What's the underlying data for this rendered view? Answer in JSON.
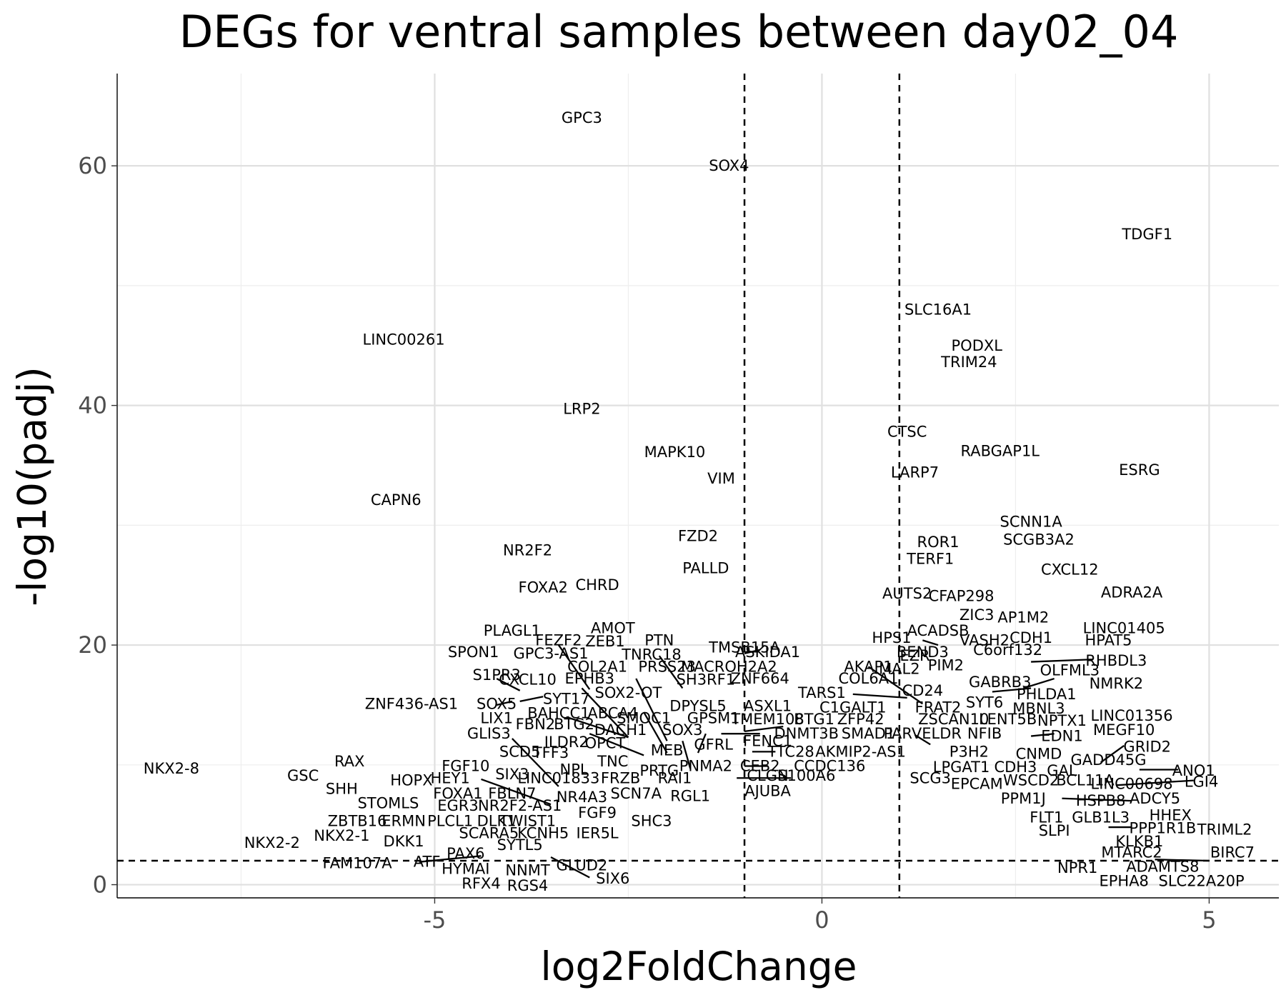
{
  "chart_data": {
    "type": "scatter",
    "title": "DEGs for ventral samples between day02_04",
    "xlabel": "log2FoldChange",
    "ylabel": "-log10(padj)",
    "xlim": [
      -9.1,
      5.9
    ],
    "ylim": [
      -1.1,
      67.7
    ],
    "x_ticks": [
      {
        "value": -5,
        "label": "-5"
      },
      {
        "value": 0,
        "label": "0"
      },
      {
        "value": 5,
        "label": "5"
      }
    ],
    "y_ticks": [
      {
        "value": 0,
        "label": "0"
      },
      {
        "value": 20,
        "label": "20"
      },
      {
        "value": 40,
        "label": "40"
      },
      {
        "value": 60,
        "label": "60"
      }
    ],
    "grid": true,
    "thresholds": {
      "log2fc": [
        -1,
        1
      ],
      "padj_neglog10": 2
    },
    "points": [
      {
        "label": "GPC3",
        "x": -3.1,
        "y": 64.0
      },
      {
        "label": "SOX4",
        "x": -1.2,
        "y": 60.0
      },
      {
        "label": "TDGF1",
        "x": 4.2,
        "y": 54.3
      },
      {
        "label": "SLC16A1",
        "x": 1.5,
        "y": 48.0
      },
      {
        "label": "LINC00261",
        "x": -5.4,
        "y": 45.5
      },
      {
        "label": "PODXL",
        "x": 2.0,
        "y": 45.0
      },
      {
        "label": "TRIM24",
        "x": 1.9,
        "y": 43.6
      },
      {
        "label": "LRP2",
        "x": -3.1,
        "y": 39.7
      },
      {
        "label": "CTSC",
        "x": 1.1,
        "y": 37.8
      },
      {
        "label": "MAPK10",
        "x": -1.9,
        "y": 36.1
      },
      {
        "label": "RABGAP1L",
        "x": 2.3,
        "y": 36.2
      },
      {
        "label": "ESRG",
        "x": 4.1,
        "y": 34.6
      },
      {
        "label": "LARP7",
        "x": 1.2,
        "y": 34.4
      },
      {
        "label": "VIM",
        "x": -1.3,
        "y": 33.9
      },
      {
        "label": "CAPN6",
        "x": -5.5,
        "y": 32.1
      },
      {
        "label": "SCNN1A",
        "x": 2.7,
        "y": 30.3
      },
      {
        "label": "FZD2",
        "x": -1.6,
        "y": 29.1
      },
      {
        "label": "SCGB3A2",
        "x": 2.8,
        "y": 28.8
      },
      {
        "label": "ROR1",
        "x": 1.5,
        "y": 28.6
      },
      {
        "label": "NR2F2",
        "x": -3.8,
        "y": 27.9
      },
      {
        "label": "TERF1",
        "x": 1.4,
        "y": 27.2
      },
      {
        "label": "CXCL12",
        "x": 3.2,
        "y": 26.3
      },
      {
        "label": "PALLD",
        "x": -1.5,
        "y": 26.4
      },
      {
        "label": "FOXA2",
        "x": -3.6,
        "y": 24.8
      },
      {
        "label": "CHRD",
        "x": -2.9,
        "y": 25.0
      },
      {
        "label": "ADRA2A",
        "x": 4.0,
        "y": 24.4
      },
      {
        "label": "AUTS2",
        "x": 1.1,
        "y": 24.3
      },
      {
        "label": "CFAP298",
        "x": 1.8,
        "y": 24.1
      },
      {
        "label": "ZIC3",
        "x": 2.0,
        "y": 22.5
      },
      {
        "label": "AP1M2",
        "x": 2.6,
        "y": 22.3
      },
      {
        "label": "AMOT",
        "x": -2.7,
        "y": 21.4
      },
      {
        "label": "PLAGL1",
        "x": -4.0,
        "y": 21.2
      },
      {
        "label": "LINC01405",
        "x": 3.9,
        "y": 21.4
      },
      {
        "label": "ACADSB",
        "x": 1.5,
        "y": 21.2
      },
      {
        "label": "HPS1",
        "x": 0.9,
        "y": 20.6
      },
      {
        "label": "VASH2",
        "x": 2.1,
        "y": 20.4
      },
      {
        "label": "CDH1",
        "x": 2.7,
        "y": 20.6
      },
      {
        "label": "HPAT5",
        "x": 3.7,
        "y": 20.4
      },
      {
        "label": "FEZF2",
        "x": -3.4,
        "y": 20.4
      },
      {
        "label": "ZEB1",
        "x": -2.8,
        "y": 20.3
      },
      {
        "label": "PTN",
        "x": -2.1,
        "y": 20.4
      },
      {
        "label": "ASKIDA1",
        "x": -0.7,
        "y": 19.4
      },
      {
        "label": "TMSB15A",
        "x": -1.0,
        "y": 19.8
      },
      {
        "label": "C6orf132",
        "x": 2.4,
        "y": 19.6
      },
      {
        "label": "SPON1",
        "x": -4.5,
        "y": 19.4
      },
      {
        "label": "GPC3-AS1",
        "x": -3.5,
        "y": 19.3
      },
      {
        "label": "TNRC18",
        "x": -2.2,
        "y": 19.2
      },
      {
        "label": "EZR",
        "x": 1.2,
        "y": 19.1
      },
      {
        "label": "BEND3",
        "x": 1.3,
        "y": 19.4
      },
      {
        "label": "RHBDL3",
        "x": 3.8,
        "y": 18.7
      },
      {
        "label": "PIM2",
        "x": 1.6,
        "y": 18.3
      },
      {
        "label": "COL2A1",
        "x": -2.9,
        "y": 18.2
      },
      {
        "label": "PRSS23",
        "x": -2.0,
        "y": 18.2
      },
      {
        "label": "MACROH2A2",
        "x": -1.2,
        "y": 18.2
      },
      {
        "label": "AKAP1",
        "x": 0.6,
        "y": 18.2
      },
      {
        "label": "MAL2",
        "x": 1.0,
        "y": 18.0
      },
      {
        "label": "OLFML3",
        "x": 3.2,
        "y": 17.9
      },
      {
        "label": "S1PR3",
        "x": -4.2,
        "y": 17.5
      },
      {
        "label": "CXCL10",
        "x": -3.8,
        "y": 17.1
      },
      {
        "label": "EPHB3",
        "x": -3.0,
        "y": 17.2
      },
      {
        "label": "SH3RF1",
        "x": -1.5,
        "y": 17.1
      },
      {
        "label": "ZNF664",
        "x": -0.8,
        "y": 17.2
      },
      {
        "label": "COL6A1",
        "x": 0.6,
        "y": 17.2
      },
      {
        "label": "GABRB3",
        "x": 2.3,
        "y": 16.9
      },
      {
        "label": "NMRK2",
        "x": 3.8,
        "y": 16.8
      },
      {
        "label": "CD24",
        "x": 1.3,
        "y": 16.2
      },
      {
        "label": "TARS1",
        "x": 0.0,
        "y": 16.0
      },
      {
        "label": "SOX2-OT",
        "x": -2.5,
        "y": 16.0
      },
      {
        "label": "PHLDA1",
        "x": 2.9,
        "y": 15.9
      },
      {
        "label": "SYT17",
        "x": -3.3,
        "y": 15.5
      },
      {
        "label": "SYT6",
        "x": 2.1,
        "y": 15.2
      },
      {
        "label": "ZNF436-AS1",
        "x": -5.3,
        "y": 15.1
      },
      {
        "label": "SOX5",
        "x": -4.2,
        "y": 15.1
      },
      {
        "label": "DPYSL5",
        "x": -1.6,
        "y": 14.9
      },
      {
        "label": "ASXL1",
        "x": -0.7,
        "y": 14.9
      },
      {
        "label": "C1GALT1",
        "x": 0.4,
        "y": 14.8
      },
      {
        "label": "FRAT2",
        "x": 1.5,
        "y": 14.8
      },
      {
        "label": "MBNL3",
        "x": 2.8,
        "y": 14.7
      },
      {
        "label": "BAHCC1",
        "x": -3.4,
        "y": 14.3
      },
      {
        "label": "ABCA4",
        "x": -2.7,
        "y": 14.3
      },
      {
        "label": "LIX1",
        "x": -4.2,
        "y": 13.9
      },
      {
        "label": "SMOC1",
        "x": -2.3,
        "y": 13.9
      },
      {
        "label": "GPSM1",
        "x": -1.4,
        "y": 13.9
      },
      {
        "label": "TMEM108",
        "x": -0.7,
        "y": 13.8
      },
      {
        "label": "BTG1",
        "x": -0.1,
        "y": 13.8
      },
      {
        "label": "ZFP42",
        "x": 0.5,
        "y": 13.8
      },
      {
        "label": "ZSCAN10",
        "x": 1.7,
        "y": 13.8
      },
      {
        "label": "LENT5B",
        "x": 2.4,
        "y": 13.8
      },
      {
        "label": "NPTX1",
        "x": 3.1,
        "y": 13.7
      },
      {
        "label": "LINC01356",
        "x": 4.0,
        "y": 14.1
      },
      {
        "label": "FBN2",
        "x": -3.7,
        "y": 13.4
      },
      {
        "label": "BTG2",
        "x": -3.2,
        "y": 13.4
      },
      {
        "label": "DACH1",
        "x": -2.6,
        "y": 12.9
      },
      {
        "label": "SOX3",
        "x": -1.8,
        "y": 12.9
      },
      {
        "label": "GLIS3",
        "x": -4.3,
        "y": 12.6
      },
      {
        "label": "DNMT3B",
        "x": -0.2,
        "y": 12.6
      },
      {
        "label": "SMAD1",
        "x": 0.6,
        "y": 12.6
      },
      {
        "label": "PARVELDR",
        "x": 1.3,
        "y": 12.6
      },
      {
        "label": "NFIB",
        "x": 2.1,
        "y": 12.6
      },
      {
        "label": "EDN1",
        "x": 3.1,
        "y": 12.4
      },
      {
        "label": "MEGF10",
        "x": 3.9,
        "y": 12.9
      },
      {
        "label": "ILDR2",
        "x": -3.3,
        "y": 11.9
      },
      {
        "label": "OPCT",
        "x": -2.8,
        "y": 11.8
      },
      {
        "label": "GFRL",
        "x": -1.4,
        "y": 11.7
      },
      {
        "label": "FENC1",
        "x": -0.7,
        "y": 12.0
      },
      {
        "label": "SCD5",
        "x": -3.9,
        "y": 11.1
      },
      {
        "label": "TFF3",
        "x": -3.5,
        "y": 11.0
      },
      {
        "label": "MEB",
        "x": -2.0,
        "y": 11.2
      },
      {
        "label": "TTC28",
        "x": -0.4,
        "y": 11.1
      },
      {
        "label": "AKMIP2-AS1",
        "x": 0.5,
        "y": 11.1
      },
      {
        "label": "P3H2",
        "x": 1.9,
        "y": 11.1
      },
      {
        "label": "CNMD",
        "x": 2.8,
        "y": 10.9
      },
      {
        "label": "GRID2",
        "x": 4.2,
        "y": 11.5
      },
      {
        "label": "TNC",
        "x": -2.7,
        "y": 10.3
      },
      {
        "label": "GADD45G",
        "x": 3.7,
        "y": 10.4
      },
      {
        "label": "NKX2-8",
        "x": -8.4,
        "y": 9.7
      },
      {
        "label": "RAX",
        "x": -6.1,
        "y": 10.3
      },
      {
        "label": "FGF10",
        "x": -4.6,
        "y": 9.9
      },
      {
        "label": "SIX3",
        "x": -4.0,
        "y": 9.2
      },
      {
        "label": "NPL",
        "x": -3.2,
        "y": 9.6
      },
      {
        "label": "PRTG",
        "x": -2.1,
        "y": 9.5
      },
      {
        "label": "PNMA2",
        "x": -1.5,
        "y": 9.9
      },
      {
        "label": "CEB2",
        "x": -0.8,
        "y": 9.9
      },
      {
        "label": "CCDC136",
        "x": 0.1,
        "y": 9.9
      },
      {
        "label": "LPGAT1",
        "x": 1.8,
        "y": 9.8
      },
      {
        "label": "CDH3",
        "x": 2.5,
        "y": 9.8
      },
      {
        "label": "GAL",
        "x": 3.1,
        "y": 9.5
      },
      {
        "label": "ANO1",
        "x": 4.8,
        "y": 9.5
      },
      {
        "label": "GSC",
        "x": -6.7,
        "y": 9.1
      },
      {
        "label": "HEY1",
        "x": -4.8,
        "y": 8.9
      },
      {
        "label": "LINC01833",
        "x": -3.4,
        "y": 8.9
      },
      {
        "label": "FRZB",
        "x": -2.6,
        "y": 8.9
      },
      {
        "label": "RAI1",
        "x": -1.9,
        "y": 8.9
      },
      {
        "label": "CLGN",
        "x": -0.7,
        "y": 9.1
      },
      {
        "label": "S100A6",
        "x": -0.2,
        "y": 9.1
      },
      {
        "label": "SCG3",
        "x": 1.4,
        "y": 8.9
      },
      {
        "label": "EPCAM",
        "x": 2.0,
        "y": 8.4
      },
      {
        "label": "WSCD2",
        "x": 2.7,
        "y": 8.7
      },
      {
        "label": "BCL11A",
        "x": 3.4,
        "y": 8.7
      },
      {
        "label": "LINC00698",
        "x": 4.0,
        "y": 8.4
      },
      {
        "label": "LGI4",
        "x": 4.9,
        "y": 8.6
      },
      {
        "label": "HOPX",
        "x": -5.3,
        "y": 8.7
      },
      {
        "label": "SHH",
        "x": -6.2,
        "y": 8.0
      },
      {
        "label": "FOXA1",
        "x": -4.7,
        "y": 7.6
      },
      {
        "label": "FBLN7",
        "x": -4.0,
        "y": 7.6
      },
      {
        "label": "SCN7A",
        "x": -2.4,
        "y": 7.6
      },
      {
        "label": "RGL1",
        "x": -1.7,
        "y": 7.4
      },
      {
        "label": "AJUBA",
        "x": -0.7,
        "y": 7.8
      },
      {
        "label": "NR4A3",
        "x": -3.1,
        "y": 7.3
      },
      {
        "label": "PPM1J",
        "x": 2.6,
        "y": 7.2
      },
      {
        "label": "HSPB8",
        "x": 3.6,
        "y": 7.0
      },
      {
        "label": "ADCY5",
        "x": 4.3,
        "y": 7.2
      },
      {
        "label": "STOMLS",
        "x": -5.6,
        "y": 6.8
      },
      {
        "label": "EGR3",
        "x": -4.7,
        "y": 6.6
      },
      {
        "label": "NR2F2-AS1",
        "x": -3.9,
        "y": 6.6
      },
      {
        "label": "FGF9",
        "x": -2.9,
        "y": 6.0
      },
      {
        "label": "FLT1",
        "x": 2.9,
        "y": 5.6
      },
      {
        "label": "GLB1L3",
        "x": 3.6,
        "y": 5.6
      },
      {
        "label": "HHEX",
        "x": 4.5,
        "y": 5.8
      },
      {
        "label": "ZBTB16",
        "x": -6.0,
        "y": 5.3
      },
      {
        "label": "ERMN",
        "x": -5.4,
        "y": 5.3
      },
      {
        "label": "PLCL1",
        "x": -4.8,
        "y": 5.3
      },
      {
        "label": "DLK1",
        "x": -4.2,
        "y": 5.3
      },
      {
        "label": "TWIST1",
        "x": -3.8,
        "y": 5.3
      },
      {
        "label": "SHC3",
        "x": -2.2,
        "y": 5.3
      },
      {
        "label": "SLPI",
        "x": 3.0,
        "y": 4.5
      },
      {
        "label": "PPP1R1B",
        "x": 4.4,
        "y": 4.7
      },
      {
        "label": "TRIML2",
        "x": 5.2,
        "y": 4.6
      },
      {
        "label": "NKX2-1",
        "x": -6.2,
        "y": 4.1
      },
      {
        "label": "SCARA5",
        "x": -4.3,
        "y": 4.3
      },
      {
        "label": "KCNH5",
        "x": -3.6,
        "y": 4.3
      },
      {
        "label": "IER5L",
        "x": -2.9,
        "y": 4.3
      },
      {
        "label": "KLKB1",
        "x": 4.1,
        "y": 3.6
      },
      {
        "label": "NKX2-2",
        "x": -7.1,
        "y": 3.5
      },
      {
        "label": "DKK1",
        "x": -5.4,
        "y": 3.6
      },
      {
        "label": "SYTL5",
        "x": -3.9,
        "y": 3.3
      },
      {
        "label": "MTARC2",
        "x": 4.0,
        "y": 2.7
      },
      {
        "label": "BIRC7",
        "x": 5.3,
        "y": 2.7
      },
      {
        "label": "PAX6",
        "x": -4.6,
        "y": 2.6
      },
      {
        "label": "FAM107A",
        "x": -6.0,
        "y": 1.8
      },
      {
        "label": "ATF",
        "x": -5.1,
        "y": 1.9
      },
      {
        "label": "GLUD2",
        "x": -3.1,
        "y": 1.6
      },
      {
        "label": "ADAMTS8",
        "x": 4.4,
        "y": 1.5
      },
      {
        "label": "NPR1",
        "x": 3.3,
        "y": 1.4
      },
      {
        "label": "HYMAI",
        "x": -4.6,
        "y": 1.3
      },
      {
        "label": "NNMT",
        "x": -3.8,
        "y": 1.2
      },
      {
        "label": "SIX6",
        "x": -2.7,
        "y": 0.5
      },
      {
        "label": "EPHA8",
        "x": 3.9,
        "y": 0.3
      },
      {
        "label": "SLC22A20P",
        "x": 4.9,
        "y": 0.3
      },
      {
        "label": "RFX4",
        "x": -4.4,
        "y": 0.1
      },
      {
        "label": "RGS4",
        "x": -3.8,
        "y": -0.1
      }
    ]
  },
  "segments": [
    {
      "x": -3.4,
      "y": 20.0,
      "x2": -3.0,
      "y2": 16.3
    },
    {
      "x": -3.1,
      "y": 16.4,
      "x2": -2.5,
      "y2": 12.3
    },
    {
      "x": -3.3,
      "y": 14.0,
      "x2": -2.5,
      "y2": 12.3
    },
    {
      "x": -2.4,
      "y": 17.2,
      "x2": -2.0,
      "y2": 12.0
    },
    {
      "x": -2.3,
      "y": 14.4,
      "x2": -2.0,
      "y2": 11.0
    },
    {
      "x": -2.1,
      "y": 19.1,
      "x2": -1.8,
      "y2": 16.4
    },
    {
      "x": -1.5,
      "y": 12.6,
      "x2": -1.6,
      "y2": 11.0
    },
    {
      "x": -1.8,
      "y": 12.0,
      "x2": -1.7,
      "y2": 9.7
    },
    {
      "x": -4.0,
      "y": 12.2,
      "x2": -3.4,
      "y2": 8.2
    },
    {
      "x": -4.4,
      "y": 8.8,
      "x2": -3.5,
      "y2": 6.7
    },
    {
      "x": -4.2,
      "y": 17.2,
      "x2": -3.9,
      "y2": 16.2
    },
    {
      "x": -3.9,
      "y": 15.3,
      "x2": -3.6,
      "y2": 15.7
    },
    {
      "x": -4.2,
      "y": 15.0,
      "x2": -4.0,
      "y2": 15.3
    },
    {
      "x": -3.0,
      "y": 12.6,
      "x2": -2.3,
      "y2": 10.8
    },
    {
      "x": -1.3,
      "y": 12.6,
      "x2": -0.8,
      "y2": 12.6
    },
    {
      "x": -1.0,
      "y": 19.3,
      "x2": -0.8,
      "y2": 19.6
    },
    {
      "x": -1.0,
      "y": 12.8,
      "x2": -0.5,
      "y2": 13.2
    },
    {
      "x": -0.9,
      "y": 11.1,
      "x2": -0.6,
      "y2": 11.1
    },
    {
      "x": -1.0,
      "y": 9.9,
      "x2": -0.7,
      "y2": 9.9
    },
    {
      "x": -1.1,
      "y": 8.9,
      "x2": -0.4,
      "y2": 8.9
    },
    {
      "x": 0.6,
      "y": 18.2,
      "x2": 1.3,
      "y2": 15.1
    },
    {
      "x": 0.4,
      "y": 15.9,
      "x2": 1.1,
      "y2": 15.6
    },
    {
      "x": 1.3,
      "y": 20.4,
      "x2": 1.5,
      "y2": 20.0
    },
    {
      "x": 1.2,
      "y": 12.5,
      "x2": 1.4,
      "y2": 11.7
    },
    {
      "x": 2.2,
      "y": 16.1,
      "x2": 2.7,
      "y2": 16.4
    },
    {
      "x": 2.6,
      "y": 16.4,
      "x2": 3.0,
      "y2": 17.2
    },
    {
      "x": 2.7,
      "y": 18.6,
      "x2": 3.5,
      "y2": 18.8
    },
    {
      "x": 2.7,
      "y": 12.4,
      "x2": 3.0,
      "y2": 12.6
    },
    {
      "x": 3.6,
      "y": 10.2,
      "x2": 3.9,
      "y2": 11.6
    },
    {
      "x": 4.1,
      "y": 9.6,
      "x2": 4.6,
      "y2": 9.6
    },
    {
      "x": 3.8,
      "y": 8.3,
      "x2": 4.8,
      "y2": 8.7
    },
    {
      "x": 3.1,
      "y": 7.2,
      "x2": 4.0,
      "y2": 7.0
    },
    {
      "x": 3.7,
      "y": 4.8,
      "x2": 4.0,
      "y2": 4.8
    },
    {
      "x": 4.3,
      "y": 2.1,
      "x2": 5.0,
      "y2": 2.0
    },
    {
      "x": -5.2,
      "y": 1.9,
      "x2": -4.4,
      "y2": 2.4
    },
    {
      "x": -3.5,
      "y": 2.3,
      "x2": -3.0,
      "y2": 0.6
    }
  ]
}
